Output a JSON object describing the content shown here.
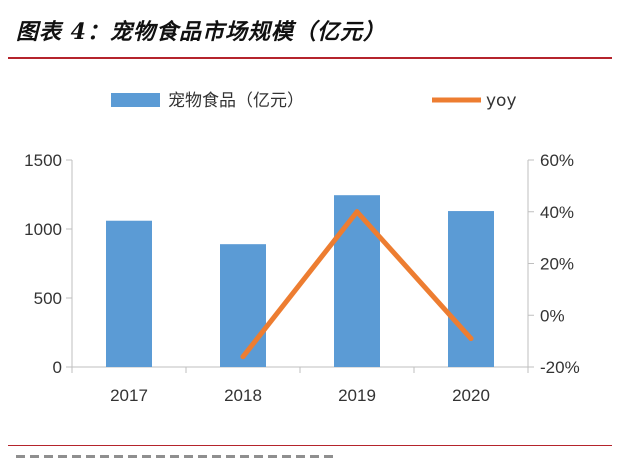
{
  "figure": {
    "title": "图表 4：宠物食品市场规模（亿元）"
  },
  "chart_data": {
    "type": "bar",
    "title": "图表 4：宠物食品市场规模（亿元）",
    "categories": [
      "2017",
      "2018",
      "2019",
      "2020"
    ],
    "series": [
      {
        "name": "宠物食品（亿元）",
        "type": "bar",
        "axis": "left",
        "values": [
          1060,
          890,
          1245,
          1130
        ],
        "color": "#5b9bd5"
      },
      {
        "name": "yoy",
        "type": "line",
        "axis": "right",
        "values": [
          null,
          -16,
          40,
          -9
        ],
        "unit": "%",
        "color": "#ed7d31"
      }
    ],
    "y_left": {
      "ticks": [
        "1500",
        "1000",
        "500",
        "0"
      ],
      "ylim": [
        0,
        1500
      ]
    },
    "y_right": {
      "ticks": [
        "60%",
        "40%",
        "20%",
        "0%",
        "-20%"
      ],
      "ylim": [
        -20,
        60
      ]
    },
    "grid": false,
    "legend": "top"
  }
}
